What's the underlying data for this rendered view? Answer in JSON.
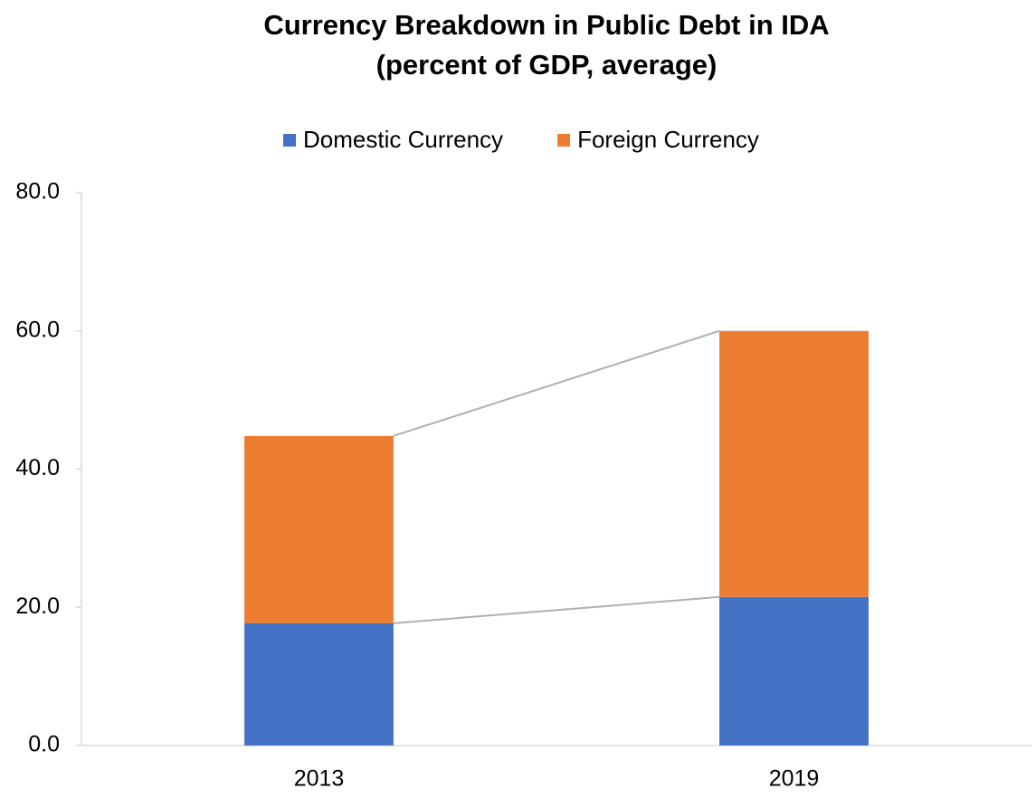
{
  "chart_data": {
    "type": "stacked_bar",
    "title": "Currency Breakdown in Public Debt in IDA",
    "subtitle": "(percent of GDP, average)",
    "categories": [
      "2013",
      "2019"
    ],
    "series": [
      {
        "name": "Domestic Currency",
        "color": "#4472c4",
        "values": [
          17.7,
          21.5
        ]
      },
      {
        "name": "Foreign Currency",
        "color": "#ed7d31",
        "values": [
          27.1,
          38.5
        ]
      }
    ],
    "ylim": [
      0,
      80
    ],
    "yticks": [
      {
        "value": 0,
        "label": "0.0"
      },
      {
        "value": 20,
        "label": "20.0"
      },
      {
        "value": 40,
        "label": "40.0"
      },
      {
        "value": 60,
        "label": "60.0"
      },
      {
        "value": 80,
        "label": "80.0"
      }
    ],
    "legend": "top",
    "series_lines": true
  }
}
